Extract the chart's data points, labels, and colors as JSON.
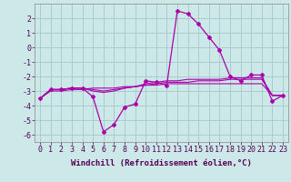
{
  "xlabel": "Windchill (Refroidissement éolien,°C)",
  "background_color": "#cce8e8",
  "grid_color": "#aacccc",
  "line_color": "#aa00aa",
  "hours": [
    0,
    1,
    2,
    3,
    4,
    5,
    6,
    7,
    8,
    9,
    10,
    11,
    12,
    13,
    14,
    15,
    16,
    17,
    18,
    19,
    20,
    21,
    22,
    23
  ],
  "windchill": [
    -3.5,
    -2.9,
    -2.9,
    -2.8,
    -2.8,
    -3.4,
    -5.8,
    -5.3,
    -4.1,
    -3.9,
    -2.3,
    -2.4,
    -2.6,
    2.5,
    2.3,
    1.6,
    0.7,
    -0.2,
    -2.0,
    -2.3,
    -1.9,
    -1.9,
    -3.7,
    -3.3
  ],
  "temp_line1": [
    -3.5,
    -2.9,
    -2.9,
    -2.8,
    -2.8,
    -3.0,
    -3.1,
    -3.0,
    -2.8,
    -2.7,
    -2.5,
    -2.4,
    -2.3,
    -2.3,
    -2.2,
    -2.2,
    -2.2,
    -2.2,
    -2.1,
    -2.1,
    -2.1,
    -2.1,
    -3.3,
    -3.3
  ],
  "temp_line2": [
    -3.5,
    -2.9,
    -2.9,
    -2.8,
    -2.8,
    -2.9,
    -3.0,
    -2.9,
    -2.8,
    -2.7,
    -2.6,
    -2.5,
    -2.4,
    -2.4,
    -2.4,
    -2.3,
    -2.3,
    -2.3,
    -2.2,
    -2.2,
    -2.2,
    -2.2,
    -3.3,
    -3.3
  ],
  "temp_line3": [
    -3.5,
    -3.0,
    -3.0,
    -2.9,
    -2.9,
    -2.8,
    -2.8,
    -2.8,
    -2.7,
    -2.7,
    -2.6,
    -2.6,
    -2.5,
    -2.5,
    -2.5,
    -2.5,
    -2.5,
    -2.5,
    -2.5,
    -2.5,
    -2.5,
    -2.5,
    -3.3,
    -3.3
  ],
  "ylim": [
    -6.5,
    3.0
  ],
  "yticks": [
    -6,
    -5,
    -4,
    -3,
    -2,
    -1,
    0,
    1,
    2
  ],
  "xlim": [
    -0.5,
    23.5
  ],
  "tick_fontsize": 6.0,
  "xlabel_fontsize": 6.5
}
